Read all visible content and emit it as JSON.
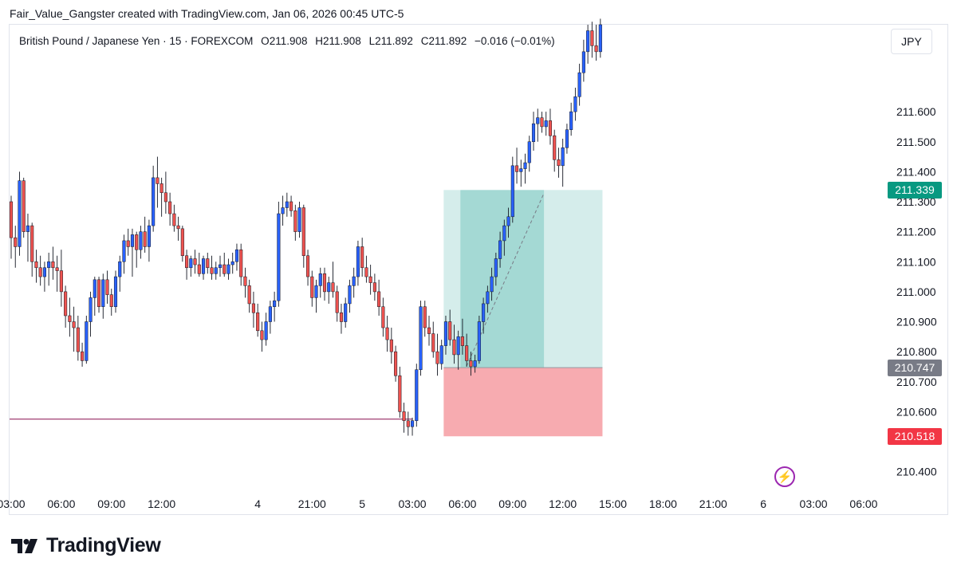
{
  "caption": "Fair_Value_Gangster created with TradingView.com, Jan 06, 2026 00:45 UTC-5",
  "symbol": {
    "name": "British Pound / Japanese Yen · 15 · FOREXCOM",
    "open_label": "O",
    "open": "211.908",
    "high_label": "H",
    "high": "211.908",
    "low_label": "L",
    "low": "211.892",
    "close_label": "C",
    "close": "211.892",
    "change": "−0.016 (−0.01%)"
  },
  "currency_button": "JPY",
  "price_tags": {
    "target": {
      "label": "211.339",
      "color": "#089981",
      "value": 211.339
    },
    "entry": {
      "label": "210.747",
      "color": "#787b86",
      "value": 210.747
    },
    "stop": {
      "label": "210.518",
      "color": "#f23645",
      "value": 210.518
    }
  },
  "brand": "TradingView",
  "colors": {
    "up": "#2962ff",
    "down": "#ef5350",
    "wick": "#131722",
    "profit_zone": "#b2dfdb",
    "profit_zone_active": "#26a69a",
    "loss_zone": "#f7a6ac",
    "level_line": "#880e4f",
    "axis_text": "#131722"
  },
  "chart_data": {
    "type": "candlestick",
    "y_axis": {
      "ylim": [
        210.33,
        211.89
      ],
      "ticks": [
        "211.600",
        "211.500",
        "211.400",
        "211.300",
        "211.200",
        "211.100",
        "211.000",
        "210.900",
        "210.800",
        "210.700",
        "210.600",
        "210.400"
      ],
      "tick_values": [
        211.6,
        211.5,
        211.4,
        211.3,
        211.2,
        211.1,
        211.0,
        210.9,
        210.8,
        210.7,
        210.6,
        210.4
      ]
    },
    "x_axis": {
      "ticks": [
        "03:00",
        "06:00",
        "09:00",
        "12:00",
        "4",
        "21:00",
        "5",
        "03:00",
        "06:00",
        "09:00",
        "12:00",
        "15:00",
        "18:00",
        "21:00",
        "6",
        "03:00",
        "06:00"
      ],
      "tick_index": [
        0,
        12,
        24,
        36,
        59,
        72,
        84,
        96,
        108,
        120,
        132,
        144,
        156,
        168,
        180,
        192,
        204
      ]
    },
    "position": {
      "type": "long",
      "start_index": 104,
      "end_index": 141,
      "entry": 210.747,
      "target": 211.339,
      "stop": 210.518,
      "active_start_index": 108,
      "active_end_index": 127
    },
    "level_line": {
      "value": 210.575,
      "end_index": 96
    },
    "series": [
      {
        "o": 211.3,
        "h": 211.32,
        "l": 211.11,
        "c": 211.18
      },
      {
        "o": 211.18,
        "h": 211.22,
        "l": 211.08,
        "c": 211.15
      },
      {
        "o": 211.15,
        "h": 211.4,
        "l": 211.12,
        "c": 211.37
      },
      {
        "o": 211.37,
        "h": 211.38,
        "l": 211.18,
        "c": 211.2
      },
      {
        "o": 211.2,
        "h": 211.26,
        "l": 211.1,
        "c": 211.22
      },
      {
        "o": 211.22,
        "h": 211.23,
        "l": 211.05,
        "c": 211.1
      },
      {
        "o": 211.1,
        "h": 211.14,
        "l": 211.03,
        "c": 211.08
      },
      {
        "o": 211.08,
        "h": 211.12,
        "l": 211.02,
        "c": 211.05
      },
      {
        "o": 211.05,
        "h": 211.1,
        "l": 211.0,
        "c": 211.08
      },
      {
        "o": 211.08,
        "h": 211.13,
        "l": 211.02,
        "c": 211.1
      },
      {
        "o": 211.1,
        "h": 211.15,
        "l": 211.04,
        "c": 211.08
      },
      {
        "o": 211.08,
        "h": 211.12,
        "l": 211.0,
        "c": 211.07
      },
      {
        "o": 211.07,
        "h": 211.14,
        "l": 210.95,
        "c": 211.0
      },
      {
        "o": 211.0,
        "h": 211.02,
        "l": 210.88,
        "c": 210.92
      },
      {
        "o": 210.92,
        "h": 210.98,
        "l": 210.85,
        "c": 210.9
      },
      {
        "o": 210.9,
        "h": 210.95,
        "l": 210.8,
        "c": 210.88
      },
      {
        "o": 210.88,
        "h": 210.92,
        "l": 210.77,
        "c": 210.8
      },
      {
        "o": 210.8,
        "h": 210.83,
        "l": 210.75,
        "c": 210.77
      },
      {
        "o": 210.77,
        "h": 210.92,
        "l": 210.76,
        "c": 210.9
      },
      {
        "o": 210.9,
        "h": 211.0,
        "l": 210.85,
        "c": 210.98
      },
      {
        "o": 210.98,
        "h": 211.05,
        "l": 210.92,
        "c": 211.04
      },
      {
        "o": 211.04,
        "h": 211.05,
        "l": 210.93,
        "c": 210.95
      },
      {
        "o": 210.95,
        "h": 211.06,
        "l": 210.91,
        "c": 211.04
      },
      {
        "o": 211.04,
        "h": 211.07,
        "l": 210.96,
        "c": 210.99
      },
      {
        "o": 210.99,
        "h": 211.01,
        "l": 210.92,
        "c": 210.95
      },
      {
        "o": 210.95,
        "h": 211.07,
        "l": 210.93,
        "c": 211.05
      },
      {
        "o": 211.05,
        "h": 211.12,
        "l": 211.0,
        "c": 211.1
      },
      {
        "o": 211.1,
        "h": 211.19,
        "l": 211.06,
        "c": 211.17
      },
      {
        "o": 211.17,
        "h": 211.21,
        "l": 211.12,
        "c": 211.15
      },
      {
        "o": 211.15,
        "h": 211.21,
        "l": 211.05,
        "c": 211.19
      },
      {
        "o": 211.19,
        "h": 211.2,
        "l": 211.08,
        "c": 211.14
      },
      {
        "o": 211.14,
        "h": 211.22,
        "l": 211.11,
        "c": 211.2
      },
      {
        "o": 211.2,
        "h": 211.25,
        "l": 211.13,
        "c": 211.15
      },
      {
        "o": 211.15,
        "h": 211.24,
        "l": 211.1,
        "c": 211.22
      },
      {
        "o": 211.22,
        "h": 211.42,
        "l": 211.2,
        "c": 211.38
      },
      {
        "o": 211.38,
        "h": 211.45,
        "l": 211.28,
        "c": 211.36
      },
      {
        "o": 211.36,
        "h": 211.38,
        "l": 211.25,
        "c": 211.33
      },
      {
        "o": 211.33,
        "h": 211.4,
        "l": 211.26,
        "c": 211.3
      },
      {
        "o": 211.3,
        "h": 211.33,
        "l": 211.22,
        "c": 211.26
      },
      {
        "o": 211.26,
        "h": 211.29,
        "l": 211.2,
        "c": 211.22
      },
      {
        "o": 211.22,
        "h": 211.25,
        "l": 211.17,
        "c": 211.21
      },
      {
        "o": 211.21,
        "h": 211.22,
        "l": 211.1,
        "c": 211.12
      },
      {
        "o": 211.12,
        "h": 211.14,
        "l": 211.04,
        "c": 211.08
      },
      {
        "o": 211.08,
        "h": 211.12,
        "l": 211.05,
        "c": 211.11
      },
      {
        "o": 211.11,
        "h": 211.14,
        "l": 211.06,
        "c": 211.09
      },
      {
        "o": 211.09,
        "h": 211.13,
        "l": 211.05,
        "c": 211.06
      },
      {
        "o": 211.06,
        "h": 211.12,
        "l": 211.04,
        "c": 211.11
      },
      {
        "o": 211.11,
        "h": 211.13,
        "l": 211.06,
        "c": 211.08
      },
      {
        "o": 211.08,
        "h": 211.12,
        "l": 211.04,
        "c": 211.06
      },
      {
        "o": 211.06,
        "h": 211.1,
        "l": 211.04,
        "c": 211.08
      },
      {
        "o": 211.08,
        "h": 211.12,
        "l": 211.05,
        "c": 211.09
      },
      {
        "o": 211.09,
        "h": 211.13,
        "l": 211.05,
        "c": 211.06
      },
      {
        "o": 211.06,
        "h": 211.11,
        "l": 211.04,
        "c": 211.09
      },
      {
        "o": 211.09,
        "h": 211.13,
        "l": 211.06,
        "c": 211.1
      },
      {
        "o": 211.1,
        "h": 211.16,
        "l": 211.07,
        "c": 211.14
      },
      {
        "o": 211.14,
        "h": 211.16,
        "l": 211.02,
        "c": 211.05
      },
      {
        "o": 211.05,
        "h": 211.08,
        "l": 210.98,
        "c": 211.02
      },
      {
        "o": 211.02,
        "h": 211.04,
        "l": 210.93,
        "c": 210.96
      },
      {
        "o": 210.96,
        "h": 211.0,
        "l": 210.88,
        "c": 210.93
      },
      {
        "o": 210.93,
        "h": 210.96,
        "l": 210.85,
        "c": 210.87
      },
      {
        "o": 210.87,
        "h": 210.9,
        "l": 210.8,
        "c": 210.84
      },
      {
        "o": 210.84,
        "h": 210.93,
        "l": 210.82,
        "c": 210.9
      },
      {
        "o": 210.9,
        "h": 210.97,
        "l": 210.86,
        "c": 210.95
      },
      {
        "o": 210.95,
        "h": 211.0,
        "l": 210.9,
        "c": 210.97
      },
      {
        "o": 210.97,
        "h": 211.3,
        "l": 210.95,
        "c": 211.26
      },
      {
        "o": 211.26,
        "h": 211.32,
        "l": 211.22,
        "c": 211.28
      },
      {
        "o": 211.28,
        "h": 211.33,
        "l": 211.25,
        "c": 211.3
      },
      {
        "o": 211.3,
        "h": 211.32,
        "l": 211.25,
        "c": 211.27
      },
      {
        "o": 211.27,
        "h": 211.29,
        "l": 211.17,
        "c": 211.2
      },
      {
        "o": 211.2,
        "h": 211.3,
        "l": 211.18,
        "c": 211.28
      },
      {
        "o": 211.28,
        "h": 211.29,
        "l": 211.08,
        "c": 211.12
      },
      {
        "o": 211.12,
        "h": 211.14,
        "l": 211.02,
        "c": 211.05
      },
      {
        "o": 211.05,
        "h": 211.07,
        "l": 210.95,
        "c": 210.98
      },
      {
        "o": 210.98,
        "h": 211.04,
        "l": 210.93,
        "c": 211.02
      },
      {
        "o": 211.02,
        "h": 211.08,
        "l": 210.98,
        "c": 211.06
      },
      {
        "o": 211.06,
        "h": 211.08,
        "l": 210.97,
        "c": 211.0
      },
      {
        "o": 211.0,
        "h": 211.05,
        "l": 210.96,
        "c": 211.03
      },
      {
        "o": 211.03,
        "h": 211.1,
        "l": 210.98,
        "c": 211.0
      },
      {
        "o": 211.0,
        "h": 211.02,
        "l": 210.9,
        "c": 210.93
      },
      {
        "o": 210.93,
        "h": 210.96,
        "l": 210.86,
        "c": 210.9
      },
      {
        "o": 210.9,
        "h": 210.98,
        "l": 210.88,
        "c": 210.96
      },
      {
        "o": 210.96,
        "h": 211.04,
        "l": 210.93,
        "c": 211.02
      },
      {
        "o": 211.02,
        "h": 211.08,
        "l": 210.98,
        "c": 211.05
      },
      {
        "o": 211.05,
        "h": 211.17,
        "l": 211.02,
        "c": 211.15
      },
      {
        "o": 211.15,
        "h": 211.18,
        "l": 211.05,
        "c": 211.08
      },
      {
        "o": 211.08,
        "h": 211.12,
        "l": 211.03,
        "c": 211.05
      },
      {
        "o": 211.05,
        "h": 211.09,
        "l": 210.99,
        "c": 211.03
      },
      {
        "o": 211.03,
        "h": 211.06,
        "l": 210.97,
        "c": 211.0
      },
      {
        "o": 211.0,
        "h": 211.04,
        "l": 210.92,
        "c": 210.95
      },
      {
        "o": 210.95,
        "h": 210.98,
        "l": 210.85,
        "c": 210.88
      },
      {
        "o": 210.88,
        "h": 210.92,
        "l": 210.8,
        "c": 210.84
      },
      {
        "o": 210.84,
        "h": 210.88,
        "l": 210.76,
        "c": 210.8
      },
      {
        "o": 210.8,
        "h": 210.82,
        "l": 210.7,
        "c": 210.72
      },
      {
        "o": 210.72,
        "h": 210.75,
        "l": 210.58,
        "c": 210.6
      },
      {
        "o": 210.6,
        "h": 210.63,
        "l": 210.53,
        "c": 210.57
      },
      {
        "o": 210.57,
        "h": 210.6,
        "l": 210.52,
        "c": 210.55
      },
      {
        "o": 210.55,
        "h": 210.58,
        "l": 210.52,
        "c": 210.57
      },
      {
        "o": 210.57,
        "h": 210.76,
        "l": 210.55,
        "c": 210.74
      },
      {
        "o": 210.74,
        "h": 210.97,
        "l": 210.72,
        "c": 210.95
      },
      {
        "o": 210.95,
        "h": 210.97,
        "l": 210.85,
        "c": 210.88
      },
      {
        "o": 210.88,
        "h": 210.92,
        "l": 210.82,
        "c": 210.86
      },
      {
        "o": 210.86,
        "h": 210.9,
        "l": 210.78,
        "c": 210.8
      },
      {
        "o": 210.8,
        "h": 210.86,
        "l": 210.72,
        "c": 210.76
      },
      {
        "o": 210.76,
        "h": 210.84,
        "l": 210.74,
        "c": 210.82
      },
      {
        "o": 210.82,
        "h": 210.92,
        "l": 210.79,
        "c": 210.9
      },
      {
        "o": 210.9,
        "h": 210.94,
        "l": 210.82,
        "c": 210.84
      },
      {
        "o": 210.84,
        "h": 210.89,
        "l": 210.76,
        "c": 210.79
      },
      {
        "o": 210.79,
        "h": 210.87,
        "l": 210.74,
        "c": 210.85
      },
      {
        "o": 210.85,
        "h": 210.91,
        "l": 210.79,
        "c": 210.82
      },
      {
        "o": 210.82,
        "h": 210.86,
        "l": 210.75,
        "c": 210.77
      },
      {
        "o": 210.77,
        "h": 210.8,
        "l": 210.72,
        "c": 210.75
      },
      {
        "o": 210.75,
        "h": 210.79,
        "l": 210.73,
        "c": 210.77
      },
      {
        "o": 210.77,
        "h": 210.92,
        "l": 210.76,
        "c": 210.9
      },
      {
        "o": 210.9,
        "h": 210.98,
        "l": 210.86,
        "c": 210.96
      },
      {
        "o": 210.96,
        "h": 211.02,
        "l": 210.93,
        "c": 211.0
      },
      {
        "o": 211.0,
        "h": 211.08,
        "l": 210.97,
        "c": 211.05
      },
      {
        "o": 211.05,
        "h": 211.13,
        "l": 211.02,
        "c": 211.11
      },
      {
        "o": 211.11,
        "h": 211.2,
        "l": 211.08,
        "c": 211.17
      },
      {
        "o": 211.17,
        "h": 211.24,
        "l": 211.12,
        "c": 211.22
      },
      {
        "o": 211.22,
        "h": 211.28,
        "l": 211.18,
        "c": 211.25
      },
      {
        "o": 211.25,
        "h": 211.45,
        "l": 211.23,
        "c": 211.42
      },
      {
        "o": 211.42,
        "h": 211.48,
        "l": 211.36,
        "c": 211.4
      },
      {
        "o": 211.4,
        "h": 211.44,
        "l": 211.35,
        "c": 211.41
      },
      {
        "o": 211.41,
        "h": 211.46,
        "l": 211.36,
        "c": 211.43
      },
      {
        "o": 211.43,
        "h": 211.52,
        "l": 211.4,
        "c": 211.5
      },
      {
        "o": 211.5,
        "h": 211.6,
        "l": 211.47,
        "c": 211.56
      },
      {
        "o": 211.56,
        "h": 211.61,
        "l": 211.5,
        "c": 211.58
      },
      {
        "o": 211.58,
        "h": 211.6,
        "l": 211.53,
        "c": 211.55
      },
      {
        "o": 211.55,
        "h": 211.6,
        "l": 211.52,
        "c": 211.57
      },
      {
        "o": 211.57,
        "h": 211.61,
        "l": 211.49,
        "c": 211.52
      },
      {
        "o": 211.52,
        "h": 211.54,
        "l": 211.4,
        "c": 211.44
      },
      {
        "o": 211.44,
        "h": 211.48,
        "l": 211.38,
        "c": 211.42
      },
      {
        "o": 211.42,
        "h": 211.51,
        "l": 211.35,
        "c": 211.48
      },
      {
        "o": 211.48,
        "h": 211.56,
        "l": 211.46,
        "c": 211.54
      },
      {
        "o": 211.54,
        "h": 211.63,
        "l": 211.52,
        "c": 211.6
      },
      {
        "o": 211.6,
        "h": 211.68,
        "l": 211.57,
        "c": 211.65
      },
      {
        "o": 211.65,
        "h": 211.76,
        "l": 211.62,
        "c": 211.73
      },
      {
        "o": 211.73,
        "h": 211.84,
        "l": 211.7,
        "c": 211.8
      },
      {
        "o": 211.8,
        "h": 211.89,
        "l": 211.76,
        "c": 211.87
      },
      {
        "o": 211.87,
        "h": 211.9,
        "l": 211.78,
        "c": 211.82
      },
      {
        "o": 211.82,
        "h": 211.89,
        "l": 211.77,
        "c": 211.8
      },
      {
        "o": 211.8,
        "h": 211.91,
        "l": 211.78,
        "c": 211.89
      }
    ]
  }
}
